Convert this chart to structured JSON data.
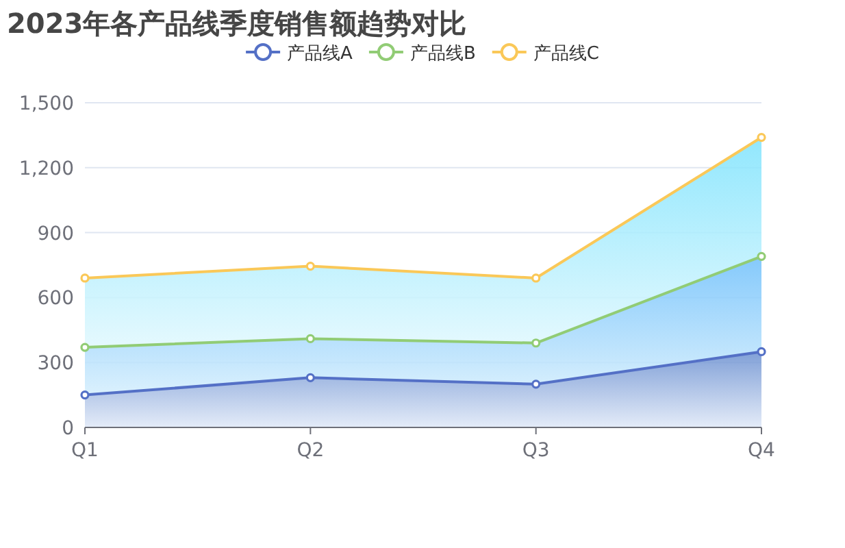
{
  "chart_data": {
    "type": "area",
    "title": "2023年各产品线季度销售额趋势对比",
    "categories": [
      "Q1",
      "Q2",
      "Q3",
      "Q4"
    ],
    "stacked": true,
    "ylim": [
      0,
      1500
    ],
    "yticks": [
      0,
      {
        "value": 300,
        "label": "300"
      },
      {
        "value": 600,
        "label": "600"
      },
      {
        "value": 900,
        "label": "900"
      },
      {
        "value": 1200,
        "label": "1,200"
      },
      {
        "value": 1500,
        "label": "1,500"
      }
    ],
    "grid": "y",
    "legend": "top",
    "marker": "circle",
    "line_style": "solid",
    "series": [
      {
        "name": "产品线A",
        "color": "#5470c6",
        "values": [
          150,
          230,
          200,
          350
        ]
      },
      {
        "name": "产品线B",
        "color": "#91cc75",
        "values": [
          220,
          180,
          190,
          440
        ]
      },
      {
        "name": "产品线C",
        "color": "#fac858",
        "values": [
          320,
          335,
          300,
          550
        ]
      }
    ]
  }
}
